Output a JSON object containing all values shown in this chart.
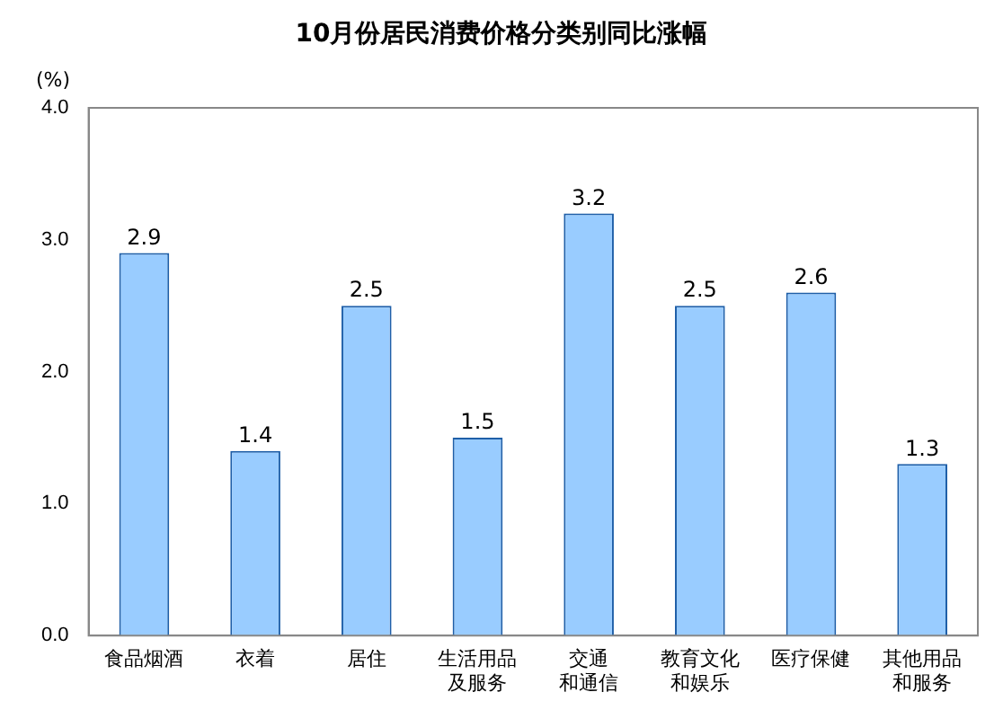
{
  "chart_data": {
    "type": "bar",
    "title": "10月份居民消费价格分类别同比涨幅",
    "ylabel": "(%)",
    "categories": [
      "食品烟酒",
      "衣着",
      "居住",
      "生活用品及服务",
      "交通和通信",
      "教育文化和娱乐",
      "医疗保健",
      "其他用品和服务"
    ],
    "values": [
      2.9,
      1.4,
      2.5,
      1.5,
      3.2,
      2.5,
      2.6,
      1.3
    ],
    "color": "#99ccff",
    "ylim": [
      0,
      4
    ],
    "yticks": [
      {
        "value": 0,
        "label": "0.0"
      },
      {
        "value": 1,
        "label": "1.0"
      },
      {
        "value": 2,
        "label": "2.0"
      },
      {
        "value": 3,
        "label": "3.0"
      },
      {
        "value": 4,
        "label": "4.0"
      }
    ],
    "grid": false,
    "legend": false,
    "data_labels": true
  }
}
